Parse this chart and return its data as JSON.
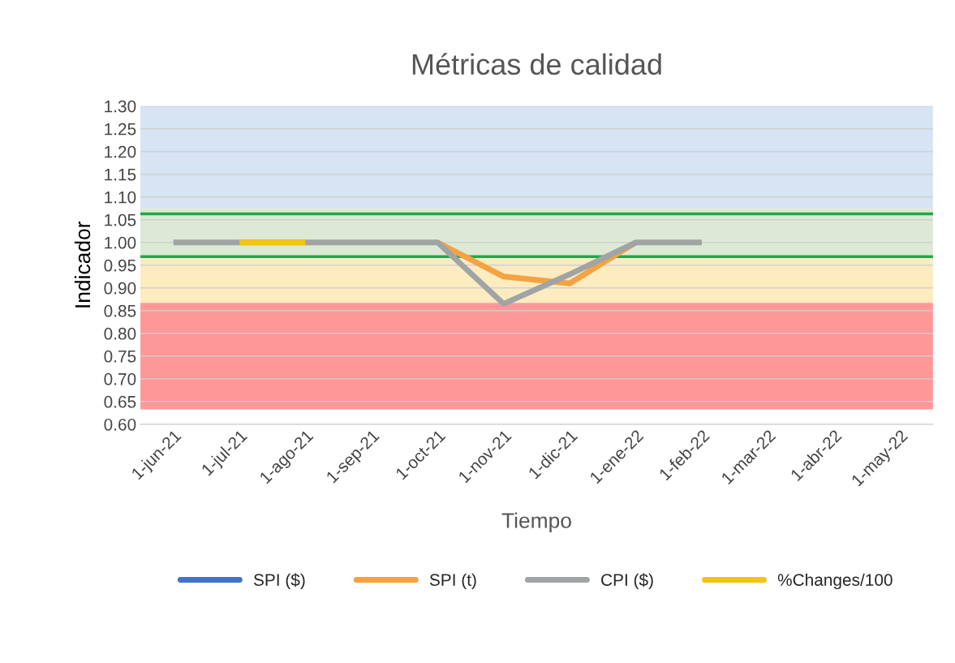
{
  "chart_data": {
    "type": "line",
    "title": "Métricas de calidad",
    "xlabel": "Tiempo",
    "ylabel": "Indicador",
    "categories": [
      "1-jun-21",
      "1-jul-21",
      "1-ago-21",
      "1-sep-21",
      "1-oct-21",
      "1-nov-21",
      "1-dic-21",
      "1-ene-22",
      "1-feb-22",
      "1-mar-22",
      "1-abr-22",
      "1-may-22"
    ],
    "series": [
      {
        "name": "SPI ($)",
        "color": "#4472c4",
        "values": [
          null,
          null,
          null,
          null,
          null,
          null,
          null,
          null,
          null,
          null,
          null,
          null
        ]
      },
      {
        "name": "SPI (t)",
        "color": "#f4a242",
        "values": [
          null,
          null,
          null,
          null,
          1.0,
          0.925,
          0.91,
          1.0,
          null,
          null,
          null,
          null
        ]
      },
      {
        "name": "CPI ($)",
        "color": "#a0a4a4",
        "values": [
          1.0,
          1.0,
          1.0,
          1.0,
          1.0,
          0.865,
          0.93,
          1.0,
          1.0,
          null,
          null,
          null
        ]
      },
      {
        "name": "%Changes/100",
        "color": "#f2c318",
        "values": [
          null,
          1.0,
          1.0,
          null,
          null,
          null,
          null,
          null,
          null,
          null,
          null,
          null
        ]
      }
    ],
    "ylim": [
      0.6,
      1.3
    ],
    "yticks": [
      {
        "value": 0.6,
        "label": "0.60"
      },
      {
        "value": 0.65,
        "label": "0.65"
      },
      {
        "value": 0.7,
        "label": "0.70"
      },
      {
        "value": 0.75,
        "label": "0.75"
      },
      {
        "value": 0.8,
        "label": "0.80"
      },
      {
        "value": 0.85,
        "label": "0.85"
      },
      {
        "value": 0.9,
        "label": "0.90"
      },
      {
        "value": 0.95,
        "label": "0.95"
      },
      {
        "value": 1.0,
        "label": "1.00"
      },
      {
        "value": 1.05,
        "label": "1.05"
      },
      {
        "value": 1.1,
        "label": "1.10"
      },
      {
        "value": 1.15,
        "label": "1.15"
      },
      {
        "value": 1.2,
        "label": "1.20"
      },
      {
        "value": 1.25,
        "label": "1.25"
      },
      {
        "value": 1.3,
        "label": "1.30"
      }
    ],
    "bands": [
      {
        "axis": "y",
        "from": 1.075,
        "to": 1.3,
        "color": "#d6e4f4"
      },
      {
        "axis": "y",
        "from": 0.965,
        "to": 1.075,
        "color": "#dde9d4"
      },
      {
        "axis": "y",
        "from": 0.867,
        "to": 0.965,
        "color": "#fcecc0"
      },
      {
        "axis": "y",
        "from": 0.633,
        "to": 0.867,
        "color": "#fe9898"
      }
    ],
    "ref_lines": [
      {
        "axis": "y",
        "value": 1.063,
        "color": "#1fa84a"
      },
      {
        "axis": "y",
        "value": 0.969,
        "color": "#1fa84a"
      }
    ],
    "grid": "y",
    "legend": "bottom",
    "marker": "none",
    "line_style": "solid"
  }
}
